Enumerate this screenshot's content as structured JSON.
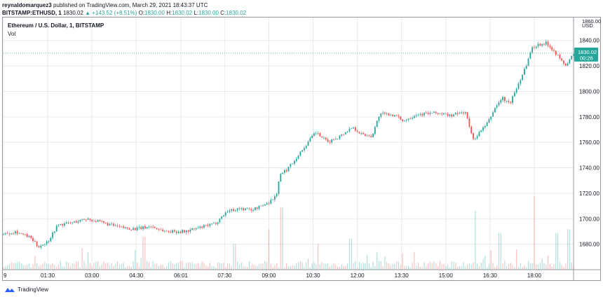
{
  "header": {
    "author": "reynaldomarquez3",
    "published": "published on TradingView.com, March 29, 2021 18:43:37 UTC",
    "symbol": "BITSTAMP:ETHUSD, 1",
    "last": "1830.02",
    "change_arrow": "▲",
    "change": "+143.52 (+8.51%)",
    "o_label": "O:",
    "o_value": "1830.00",
    "h_label": "H:",
    "h_value": "1830.02",
    "l_label": "L:",
    "l_value": "1830.00",
    "c_label": "C:",
    "c_value": "1830.02"
  },
  "pane": {
    "title": "Ethereum / U.S. Dollar, 1, BITSTAMP",
    "vol_label": "Vol",
    "currency": "USD",
    "top_partial_label": "1860.00",
    "price_tag_value": "1830.02",
    "price_tag_countdown": "00:26"
  },
  "footer": {
    "brand": "TradingView"
  },
  "colors": {
    "up": "#26a69a",
    "down": "#ef5350",
    "grid": "#e7e9ee",
    "axis_text": "#131722"
  },
  "chart_data": {
    "type": "candlestick",
    "title": "Ethereum / U.S. Dollar, 1, BITSTAMP",
    "ylabel": "USD",
    "ylim": [
      1660,
      1858
    ],
    "y_ticks": [
      1680,
      1700,
      1720,
      1740,
      1760,
      1780,
      1800,
      1820,
      1840
    ],
    "x_ticks": [
      "9",
      "01:30",
      "03:00",
      "04:30",
      "06:01",
      "07:30",
      "09:00",
      "10:30",
      "12:00",
      "13:30",
      "15:00",
      "16:30",
      "18:00"
    ],
    "x_ticks_minutes": [
      0,
      90,
      180,
      270,
      361,
      450,
      540,
      630,
      720,
      810,
      900,
      990,
      1080
    ],
    "x_range_minutes": [
      0,
      1160
    ],
    "last_price": 1830.02,
    "grid": true,
    "price_path": [
      [
        0,
        1688
      ],
      [
        25,
        1690
      ],
      [
        55,
        1685
      ],
      [
        70,
        1678
      ],
      [
        90,
        1682
      ],
      [
        110,
        1695
      ],
      [
        140,
        1697
      ],
      [
        170,
        1700
      ],
      [
        200,
        1697
      ],
      [
        240,
        1693
      ],
      [
        270,
        1692
      ],
      [
        300,
        1694
      ],
      [
        330,
        1690
      ],
      [
        370,
        1690
      ],
      [
        400,
        1693
      ],
      [
        430,
        1696
      ],
      [
        455,
        1706
      ],
      [
        480,
        1708
      ],
      [
        505,
        1707
      ],
      [
        525,
        1710
      ],
      [
        540,
        1713
      ],
      [
        555,
        1718
      ],
      [
        562,
        1734
      ],
      [
        575,
        1738
      ],
      [
        590,
        1745
      ],
      [
        610,
        1755
      ],
      [
        635,
        1768
      ],
      [
        660,
        1760
      ],
      [
        685,
        1765
      ],
      [
        710,
        1772
      ],
      [
        730,
        1766
      ],
      [
        750,
        1765
      ],
      [
        765,
        1782
      ],
      [
        790,
        1782
      ],
      [
        815,
        1777
      ],
      [
        840,
        1782
      ],
      [
        880,
        1783
      ],
      [
        910,
        1781
      ],
      [
        940,
        1784
      ],
      [
        955,
        1762
      ],
      [
        965,
        1766
      ],
      [
        985,
        1775
      ],
      [
        1000,
        1787
      ],
      [
        1015,
        1795
      ],
      [
        1030,
        1790
      ],
      [
        1050,
        1808
      ],
      [
        1065,
        1822
      ],
      [
        1075,
        1834
      ],
      [
        1090,
        1837
      ],
      [
        1105,
        1838
      ],
      [
        1120,
        1832
      ],
      [
        1135,
        1824
      ],
      [
        1145,
        1820
      ],
      [
        1160,
        1830
      ]
    ],
    "volume_spikes": [
      {
        "x": 285,
        "v": 0.45
      },
      {
        "x": 470,
        "v": 0.35
      },
      {
        "x": 540,
        "v": 0.55
      },
      {
        "x": 565,
        "v": 0.85
      },
      {
        "x": 640,
        "v": 0.35
      },
      {
        "x": 705,
        "v": 0.42
      },
      {
        "x": 960,
        "v": 0.8
      },
      {
        "x": 1010,
        "v": 0.5
      },
      {
        "x": 1080,
        "v": 1.0
      },
      {
        "x": 1125,
        "v": 0.5
      },
      {
        "x": 1150,
        "v": 0.55
      }
    ]
  }
}
